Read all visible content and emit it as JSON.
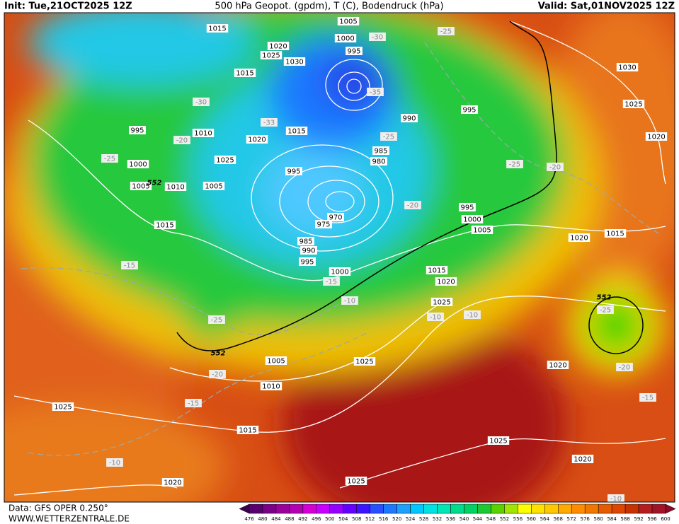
{
  "header": {
    "init": "Init: Tue,21OCT2025 12Z",
    "title": "500 hPa Geopot. (gpdm), T (C), Bodendruck (hPa)",
    "valid": "Valid: Sat,01NOV2025 12Z"
  },
  "footer": {
    "data": "Data: GFS OPER 0.250°",
    "site": "WWW.WETTERZENTRALE.DE"
  },
  "colorbar": {
    "labels": [
      "476",
      "480",
      "484",
      "488",
      "492",
      "496",
      "500",
      "504",
      "508",
      "512",
      "516",
      "520",
      "524",
      "528",
      "532",
      "536",
      "540",
      "544",
      "548",
      "552",
      "556",
      "560",
      "564",
      "568",
      "572",
      "576",
      "580",
      "584",
      "588",
      "592",
      "596",
      "600"
    ],
    "colors": [
      "#3c0050",
      "#5a006e",
      "#7a0087",
      "#9b009b",
      "#b400b4",
      "#d200d2",
      "#c800ff",
      "#9600ff",
      "#6400ff",
      "#3c14ff",
      "#2850ff",
      "#1e78ff",
      "#1ea0ff",
      "#00c8ff",
      "#00e1e1",
      "#00e6b4",
      "#00dc8c",
      "#00d264",
      "#1ec832",
      "#5ad200",
      "#a0e600",
      "#ffff00",
      "#ffe100",
      "#ffc800",
      "#ffaa00",
      "#ff8c00",
      "#f07800",
      "#e65a00",
      "#dc4600",
      "#c83200",
      "#b41e1e",
      "#a01428",
      "#8c0a28"
    ]
  },
  "pressure_labels": [
    "1015",
    "1005",
    "1000",
    "995",
    "1020",
    "1025",
    "1030",
    "1015",
    "995",
    "1010",
    "1020",
    "1015",
    "1025",
    "1000",
    "1005",
    "1010",
    "1005",
    "995",
    "985",
    "980",
    "990",
    "995",
    "970",
    "975",
    "985",
    "990",
    "995",
    "1000",
    "1015",
    "995",
    "1000",
    "1005",
    "1015",
    "1020",
    "1025",
    "1020",
    "1015",
    "1020",
    "1025",
    "1005",
    "1010",
    "1015",
    "1025",
    "1020",
    "1025",
    "1025",
    "1020",
    "1030",
    "1025",
    "1020"
  ],
  "temperature_labels": [
    "-30",
    "-25",
    "-35",
    "-30",
    "-33",
    "-25",
    "-20",
    "-25",
    "-25",
    "-20",
    "-20",
    "-15",
    "-15",
    "-10",
    "-25",
    "-20",
    "-15",
    "-10",
    "-10",
    "-10",
    "-25",
    "-20",
    "-15",
    "-10"
  ],
  "geopotential_labels": [
    "552",
    "552",
    "552"
  ]
}
